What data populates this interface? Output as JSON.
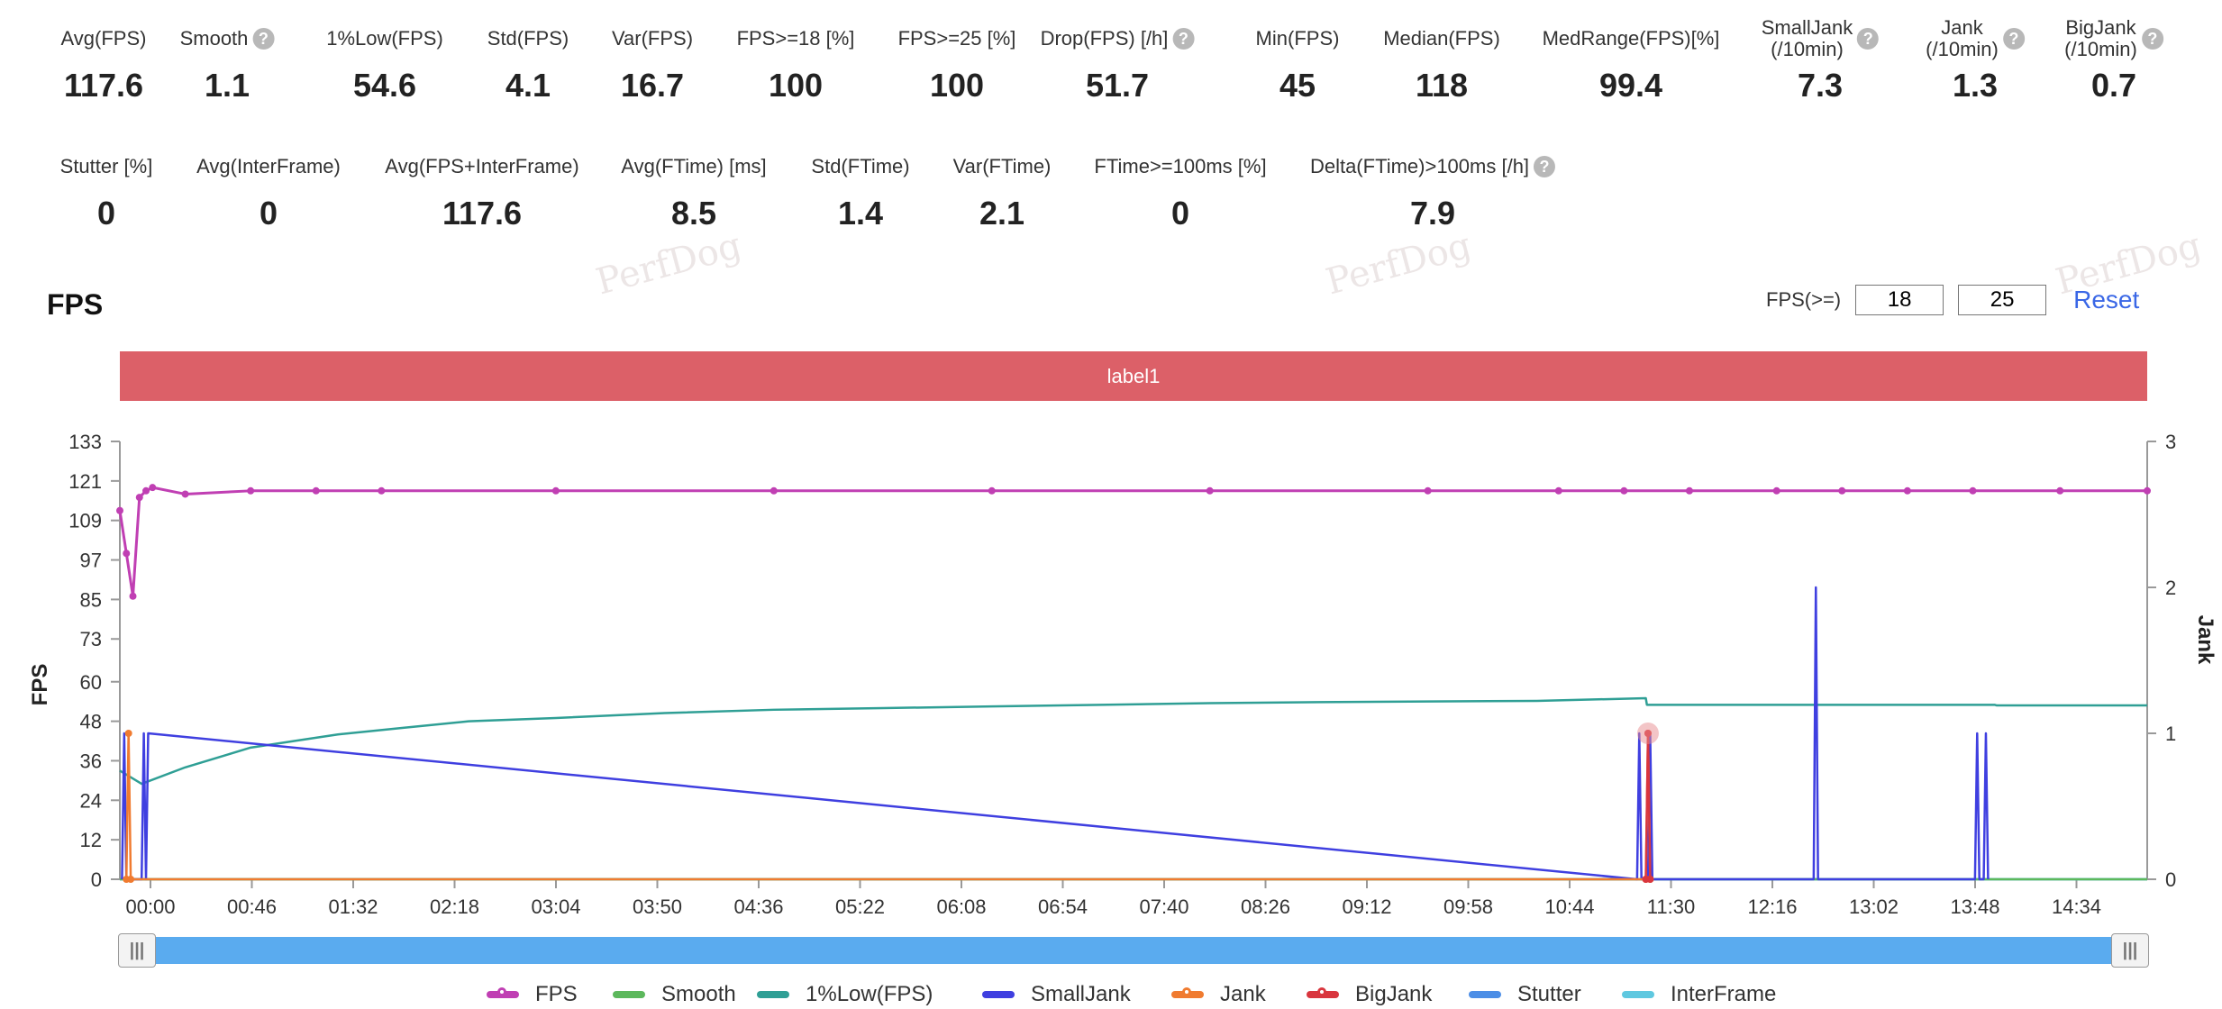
{
  "stats_row1": [
    {
      "label": "Avg(FPS)",
      "value": "117.6",
      "help": false
    },
    {
      "label": "Smooth",
      "value": "1.1",
      "help": true
    },
    {
      "label": "1%Low(FPS)",
      "value": "54.6",
      "help": false
    },
    {
      "label": "Std(FPS)",
      "value": "4.1",
      "help": false
    },
    {
      "label": "Var(FPS)",
      "value": "16.7",
      "help": false
    },
    {
      "label": "FPS>=18 [%]",
      "value": "100",
      "help": false
    },
    {
      "label": "FPS>=25 [%]",
      "value": "100",
      "help": false
    },
    {
      "label": "Drop(FPS) [/h]",
      "value": "51.7",
      "help": true
    },
    {
      "label": "Min(FPS)",
      "value": "45",
      "help": false
    },
    {
      "label": "Median(FPS)",
      "value": "118",
      "help": false
    },
    {
      "label": "MedRange(FPS)[%]",
      "value": "99.4",
      "help": false
    },
    {
      "label": "SmallJank",
      "label2": "(/10min)",
      "value": "7.3",
      "help": true
    },
    {
      "label": "Jank",
      "label2": "(/10min)",
      "value": "1.3",
      "help": true
    },
    {
      "label": "BigJank",
      "label2": "(/10min)",
      "value": "0.7",
      "help": true
    }
  ],
  "stats_row2": [
    {
      "label": "Stutter [%]",
      "value": "0",
      "help": false
    },
    {
      "label": "Avg(InterFrame)",
      "value": "0",
      "help": false
    },
    {
      "label": "Avg(FPS+InterFrame)",
      "value": "117.6",
      "help": false
    },
    {
      "label": "Avg(FTime) [ms]",
      "value": "8.5",
      "help": false
    },
    {
      "label": "Std(FTime)",
      "value": "1.4",
      "help": false
    },
    {
      "label": "Var(FTime)",
      "value": "2.1",
      "help": false
    },
    {
      "label": "FTime>=100ms [%]",
      "value": "0",
      "help": false
    },
    {
      "label": "Delta(FTime)>100ms [/h]",
      "value": "7.9",
      "help": true
    }
  ],
  "watermark": "PerfDog",
  "chart_title": "FPS",
  "threshold": {
    "label": "FPS(>=)",
    "value1": "18",
    "value2": "25",
    "reset_label": "Reset"
  },
  "label_band": "label1",
  "colors": {
    "fps": "#c03fb3",
    "smooth": "#5cb85c",
    "low1": "#2f9f95",
    "smalljank": "#3f3fe0",
    "jank": "#f07b30",
    "bigjank": "#d9363e",
    "stutter": "#4c8ee6",
    "interframe": "#5fc8e0",
    "band": "#dc6068"
  },
  "chart_data": {
    "type": "line",
    "ylabel": "FPS",
    "y2label": "Jank",
    "yticks": [
      0,
      12,
      24,
      36,
      48,
      60,
      73,
      85,
      97,
      109,
      121,
      133
    ],
    "y2ticks": [
      0,
      1,
      2,
      3
    ],
    "ylim": [
      0,
      133
    ],
    "y2lim": [
      0,
      3
    ],
    "xticks": [
      "00:00",
      "00:46",
      "01:32",
      "02:18",
      "03:04",
      "03:50",
      "04:36",
      "05:22",
      "06:08",
      "06:54",
      "07:40",
      "08:26",
      "09:12",
      "09:58",
      "10:44",
      "11:30",
      "12:16",
      "13:02",
      "13:48",
      "14:34"
    ],
    "xlim_seconds": [
      0,
      930
    ],
    "series": [
      {
        "name": "FPS",
        "axis": "left",
        "x": [
          0,
          3,
          6,
          9,
          12,
          15,
          30,
          60,
          90,
          120,
          200,
          300,
          400,
          500,
          600,
          660,
          690,
          720,
          760,
          790,
          820,
          850,
          890,
          930
        ],
        "y": [
          112,
          99,
          86,
          116,
          118,
          119,
          117,
          118,
          118,
          118,
          118,
          118,
          118,
          118,
          118,
          118,
          118,
          118,
          118,
          118,
          118,
          118,
          118,
          118
        ]
      },
      {
        "name": "1%Low(FPS)",
        "axis": "left",
        "x": [
          0,
          10,
          30,
          50,
          60,
          80,
          100,
          130,
          160,
          200,
          250,
          300,
          350,
          400,
          450,
          500,
          550,
          600,
          650,
          700,
          700.5,
          750,
          800,
          860,
          861,
          900,
          930
        ],
        "y": [
          33,
          29,
          34,
          38,
          40,
          42,
          44,
          46,
          48,
          49,
          50.5,
          51.5,
          52,
          52.5,
          53,
          53.5,
          53.8,
          54,
          54.2,
          55,
          53,
          53,
          53,
          53,
          52.8,
          52.8,
          52.8
        ]
      },
      {
        "name": "Smooth",
        "axis": "right",
        "x": [
          0,
          100,
          200,
          300,
          400,
          500,
          600,
          700,
          800,
          900,
          930
        ],
        "y": [
          0,
          0,
          0,
          0,
          0,
          0,
          0,
          0,
          0,
          0,
          0
        ]
      },
      {
        "name": "SmallJank",
        "axis": "right",
        "x": [
          1,
          2,
          3,
          10,
          11,
          12,
          13,
          696,
          697,
          698,
          701,
          702,
          703,
          777,
          778,
          779,
          851,
          852,
          853,
          855,
          856,
          857
        ],
        "y": [
          0,
          1,
          0,
          0,
          1,
          0,
          1,
          0,
          1,
          0,
          0,
          1,
          0,
          0,
          2,
          0,
          0,
          1,
          0,
          0,
          1,
          0
        ]
      },
      {
        "name": "Jank",
        "axis": "right",
        "x": [
          3,
          4,
          5,
          700,
          701,
          702
        ],
        "y": [
          0,
          1,
          0,
          0,
          1,
          0
        ]
      },
      {
        "name": "BigJank",
        "axis": "right",
        "x": [
          700,
          701,
          702
        ],
        "y": [
          0,
          1,
          0
        ]
      },
      {
        "name": "Stutter",
        "axis": "right",
        "x": [
          0,
          930
        ],
        "y": [
          0,
          0
        ]
      },
      {
        "name": "InterFrame",
        "axis": "right",
        "x": [
          0,
          930
        ],
        "y": [
          0,
          0
        ]
      }
    ]
  },
  "legend": [
    "FPS",
    "Smooth",
    "1%Low(FPS)",
    "SmallJank",
    "Jank",
    "BigJank",
    "Stutter",
    "InterFrame"
  ]
}
